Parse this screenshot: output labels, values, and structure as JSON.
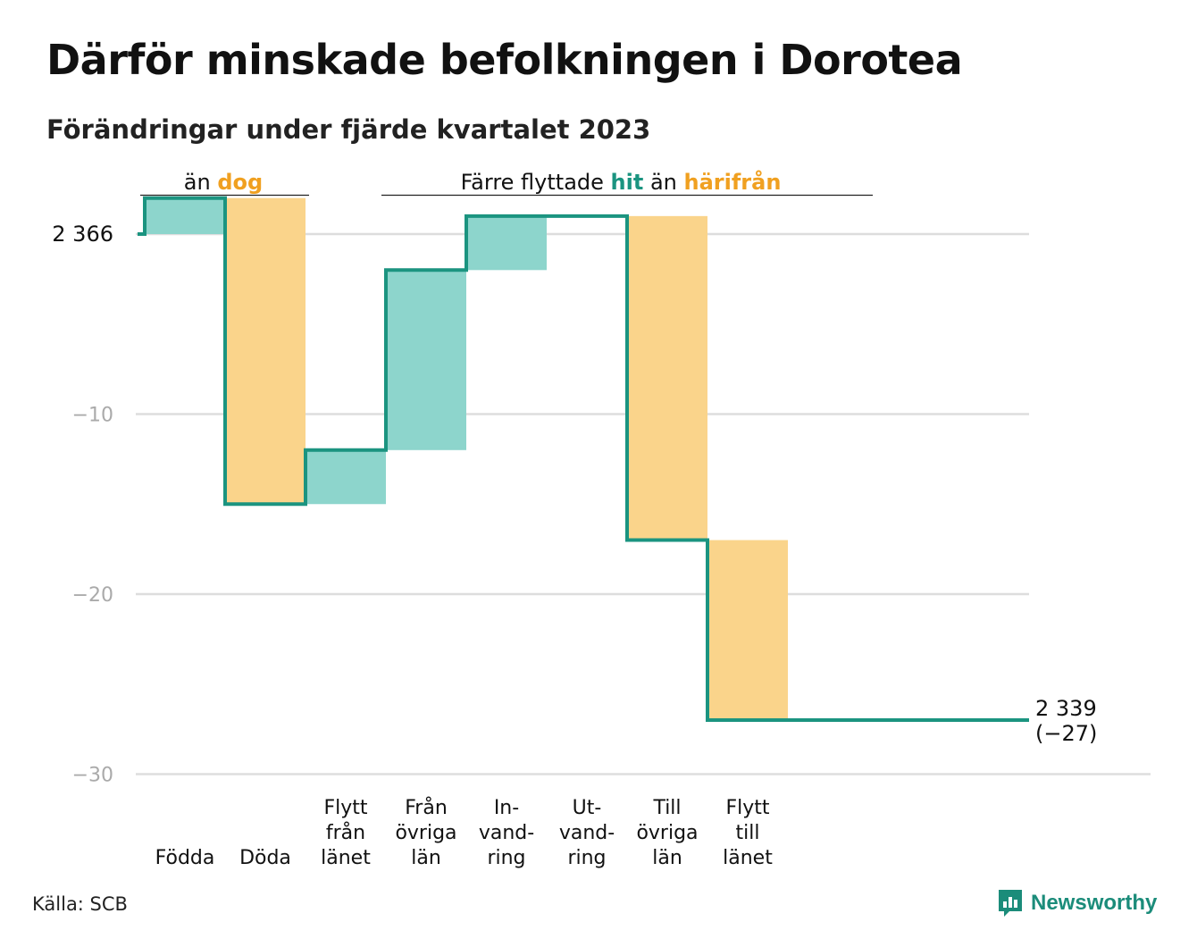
{
  "title": "Därför minskade befolkningen i Dorotea",
  "subtitle": "Förändringar under fjärde kvartalet 2023",
  "source": "Källa: SCB",
  "logo": {
    "text": "Newsworthy",
    "icon": "newsworthy-chart-icon"
  },
  "colors": {
    "positive": "#8dd5cc",
    "negative": "#fad48b",
    "step_line": "#1b9480",
    "grid": "#dddddd",
    "orange_accent": "#f0a020",
    "teal_accent": "#1b9480"
  },
  "groups": [
    {
      "parts": [
        {
          "text": "än ",
          "style": "normal"
        },
        {
          "text": "dog",
          "style": "orange"
        }
      ]
    },
    {
      "parts": [
        {
          "text": "Färre flyttade ",
          "style": "normal"
        },
        {
          "text": "hit",
          "style": "teal"
        },
        {
          "text": " än ",
          "style": "normal"
        },
        {
          "text": "härifrån",
          "style": "orange"
        }
      ]
    }
  ],
  "chart_data": {
    "type": "waterfall",
    "title": "Därför minskade befolkningen i Dorotea",
    "subtitle": "Förändringar under fjärde kvartalet 2023",
    "y_ticks": [
      {
        "value": 0,
        "label": "2 366"
      },
      {
        "value": -10,
        "label": "−10"
      },
      {
        "value": -20,
        "label": "−20"
      },
      {
        "value": -30,
        "label": "−30"
      }
    ],
    "ylim": [
      -30,
      2
    ],
    "start_value": 2366,
    "end_value": 2339,
    "end_labels": [
      "2 339",
      "(−27)"
    ],
    "categories": [
      {
        "label": [
          "Födda"
        ],
        "change": 2
      },
      {
        "label": [
          "Döda"
        ],
        "change": -17
      },
      {
        "label": [
          "Flytt",
          "från",
          "länet"
        ],
        "change": 3
      },
      {
        "label": [
          "Från",
          "övriga",
          "län"
        ],
        "change": 10
      },
      {
        "label": [
          "In-",
          "vand-",
          "ring"
        ],
        "change": 3
      },
      {
        "label": [
          "Ut-",
          "vand-",
          "ring"
        ],
        "change": 0
      },
      {
        "label": [
          "Till",
          "övriga",
          "län"
        ],
        "change": -18
      },
      {
        "label": [
          "Flytt",
          "till",
          "länet"
        ],
        "change": -10
      }
    ],
    "grid": true
  }
}
